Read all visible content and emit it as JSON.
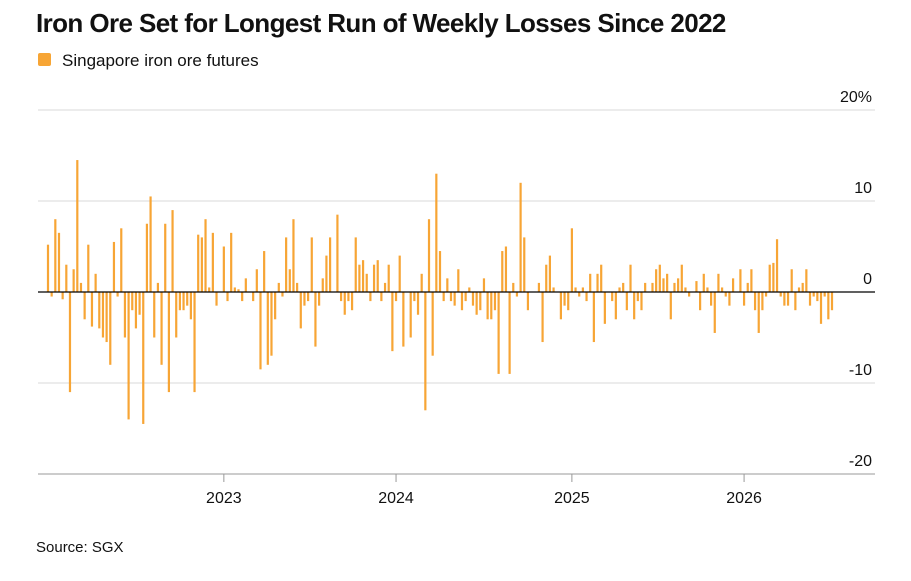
{
  "chart_data": {
    "type": "bar",
    "title": "Iron Ore Set for Longest Run of Weekly Losses Since 2022",
    "source": "Source: SGX",
    "series": [
      {
        "name": "Singapore iron ore futures",
        "color": "#f7a535",
        "values": [
          5.2,
          -0.5,
          8,
          6.5,
          -0.8,
          3,
          -11,
          2.5,
          14.5,
          1,
          -3,
          5.2,
          -3.8,
          2,
          -4,
          -5,
          -5.5,
          -8,
          5.5,
          -0.5,
          7,
          -5,
          -14,
          -2,
          -4,
          -2.5,
          -14.5,
          7.5,
          10.5,
          -5,
          1,
          -8,
          7.5,
          -11,
          9,
          -5,
          -2,
          -2,
          -1.5,
          -3,
          -11,
          6.3,
          6,
          8,
          0.5,
          6.5,
          -1.5,
          0,
          5,
          -1,
          6.5,
          0.5,
          0.3,
          -1,
          1.5,
          0,
          -1,
          2.5,
          -8.5,
          4.5,
          -8,
          -7,
          -3,
          1,
          -0.5,
          6,
          2.5,
          8,
          1,
          -4,
          -1.5,
          -1,
          6,
          -6,
          -1.5,
          1.5,
          4,
          6,
          0,
          8.5,
          -1,
          -2.5,
          -1,
          -2,
          6,
          3,
          3.5,
          2,
          -1,
          3,
          3.5,
          -1,
          1,
          3,
          -6.5,
          -1,
          4,
          -6,
          0,
          -5,
          -1,
          -2.5,
          2,
          -13,
          8,
          -7,
          13,
          4.5,
          -1,
          1.5,
          -1,
          -1.5,
          2.5,
          -2,
          -1,
          0.5,
          -1.5,
          -2.5,
          -2,
          1.5,
          -3,
          -3,
          -2,
          -9,
          4.5,
          5,
          -9,
          1,
          -0.5,
          12,
          6,
          -2,
          0,
          0,
          1,
          -5.5,
          3,
          4,
          0.5,
          0,
          -3,
          -1.5,
          -2,
          7,
          0.5,
          -0.5,
          0.5,
          -1,
          2,
          -5.5,
          2,
          3,
          -3.5,
          0,
          -1,
          -3,
          0.5,
          1,
          -2,
          3,
          -3,
          -1,
          -2,
          1,
          0,
          1,
          2.5,
          3,
          1.5,
          2,
          -3,
          1,
          1.5,
          3,
          0.5,
          -0.5,
          0,
          1.2,
          -2,
          2,
          0.5,
          -1.5,
          -4.5,
          2,
          0.5,
          -0.5,
          -1.5,
          1.5,
          0,
          2.5,
          -1.5,
          1,
          2.5,
          -2,
          -4.5,
          -2,
          -0.5,
          3,
          3.2,
          5.8,
          -0.5,
          -1.5,
          -1.5,
          2.5,
          -2,
          0.5,
          1,
          2.5,
          -1.5,
          -0.5,
          -1,
          -3.5,
          -0.5,
          -3,
          -2
        ]
      }
    ],
    "categories": [
      null,
      null,
      null,
      null,
      null,
      null,
      null,
      null,
      null,
      null,
      null,
      null,
      null,
      null,
      null,
      null,
      null,
      null,
      null,
      null,
      null,
      null,
      null,
      null,
      null,
      null,
      null,
      null,
      null,
      null,
      null,
      null,
      null,
      null,
      null,
      null,
      null,
      null,
      null,
      null,
      null,
      null,
      null,
      null,
      null,
      null,
      null,
      null,
      "2023",
      null,
      null,
      null,
      null,
      null,
      null,
      null,
      null,
      null,
      null,
      null,
      null,
      null,
      null,
      null,
      null,
      null,
      null,
      null,
      null,
      null,
      null,
      null,
      null,
      null,
      null,
      null,
      null,
      null,
      null,
      null,
      null,
      null,
      null,
      null,
      null,
      null,
      null,
      null,
      null,
      null,
      null,
      null,
      null,
      null,
      null,
      "2024",
      null,
      null,
      null,
      null,
      null,
      null,
      null,
      null,
      null,
      null,
      null,
      null,
      null,
      null,
      null,
      null,
      null,
      null,
      null,
      null,
      null,
      null,
      null,
      null,
      null,
      null,
      null,
      null,
      null,
      null,
      null,
      null,
      null,
      null,
      null,
      null,
      null,
      null,
      null,
      null,
      null,
      null,
      null,
      null,
      null,
      null,
      null,
      "2025",
      null,
      null,
      null,
      null,
      null,
      null,
      null,
      null,
      null,
      null,
      null,
      null,
      null,
      null,
      null,
      null,
      null,
      null,
      null,
      null,
      null,
      null,
      null,
      null,
      null,
      null,
      null,
      null,
      null,
      null,
      null,
      null,
      null,
      null,
      null,
      null,
      null,
      null,
      null,
      null,
      null,
      null,
      null,
      null,
      null,
      null,
      "2026",
      null,
      null,
      null,
      null,
      null,
      null,
      null,
      null,
      null,
      null,
      null,
      null,
      null,
      null,
      null,
      null,
      null,
      null,
      null,
      null,
      null,
      null,
      null,
      null
    ],
    "ylim": [
      -20,
      20
    ],
    "yticks": [
      {
        "value": 20,
        "label": "20%"
      },
      10,
      0,
      -10,
      -20
    ],
    "grid": true,
    "legend": "top-left"
  }
}
